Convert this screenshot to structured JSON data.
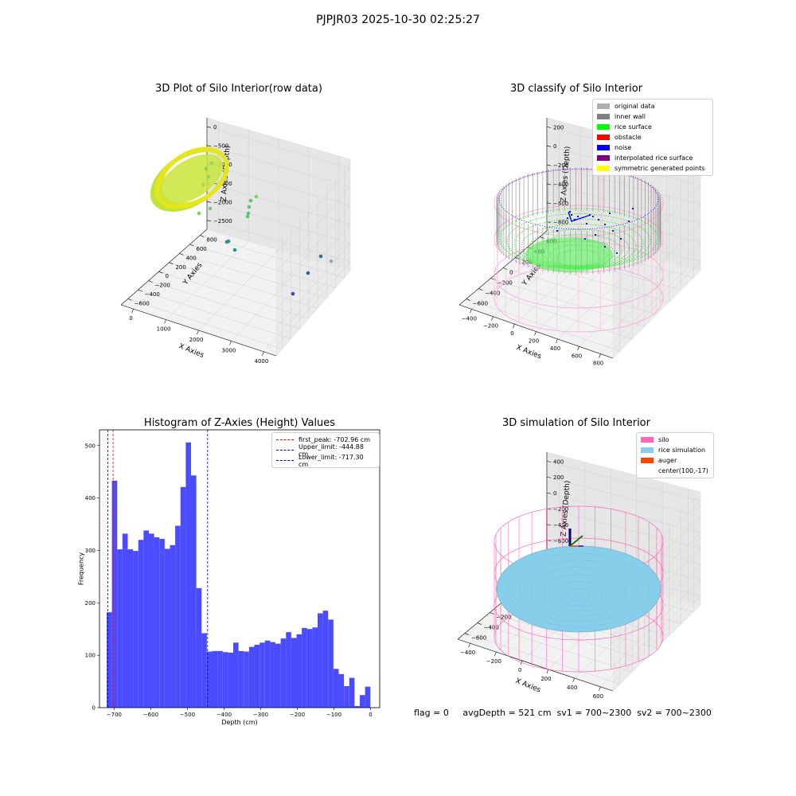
{
  "suptitle": "PJPJR03 2025-10-30 02:25:27",
  "status": "flag = 0     avgDepth = 521 cm  sv1 = 700~2300  sv2 = 700~2300",
  "panels": {
    "raw": {
      "title": "3D Plot of Silo Interior(row data)",
      "xlabel": "X Axies",
      "ylabel": "Y Axies",
      "zlabel": "Z Axies (Depth)",
      "xticks": [
        "0",
        "1000",
        "2000",
        "3000",
        "4000"
      ],
      "yticks": [
        "800",
        "600",
        "400",
        "200",
        "0",
        "−200",
        "−400",
        "−600"
      ],
      "zticks": [
        "0",
        "−500",
        "−1000",
        "−1500",
        "−2000",
        "−2500"
      ]
    },
    "classify": {
      "title": "3D classify of Silo Interior",
      "xlabel": "X Axies",
      "ylabel": "Y Axies",
      "zlabel": "Z Axies (Depth)",
      "xticks": [
        "−400",
        "−200",
        "0",
        "200",
        "400",
        "600",
        "800"
      ],
      "yticks": [
        "600",
        "400",
        "200",
        "0",
        "−200",
        "−400",
        "−600"
      ],
      "zticks": [
        "200",
        "0",
        "−200",
        "−400",
        "−600",
        "−800"
      ],
      "legend": [
        {
          "label": "original data",
          "color": "#b0b0b0"
        },
        {
          "label": "inner wall",
          "color": "#808080"
        },
        {
          "label": "rice surface",
          "color": "#00ff00"
        },
        {
          "label": "obstacle",
          "color": "#ff0000"
        },
        {
          "label": "noise",
          "color": "#0000ff"
        },
        {
          "label": "interpolated rice surface",
          "color": "#800080"
        },
        {
          "label": "symmetric generated points",
          "color": "#ffff00"
        }
      ]
    },
    "simulation": {
      "title": "3D simulation of Silo Interior",
      "xlabel": "X Axies",
      "ylabel": "Y Axies",
      "zlabel": "Z Axies (Depth)",
      "xticks": [
        "−400",
        "−200",
        "0",
        "200",
        "400",
        "600"
      ],
      "yticks": [
        "600",
        "400",
        "200",
        "0",
        "−200",
        "−400",
        "−600"
      ],
      "zticks": [
        "400",
        "200",
        "0",
        "−200",
        "−400",
        "−600",
        "−800"
      ],
      "legend": [
        {
          "label": "silo",
          "color": "#ff69b4"
        },
        {
          "label": "rice simulation",
          "color": "#87ceeb"
        },
        {
          "label": "auger",
          "color": "#ff4500"
        },
        {
          "label": "center(100,-17)",
          "color": "none"
        }
      ]
    }
  },
  "chart_data": [
    {
      "type": "bar",
      "title": "Histogram of Z-Axies (Height) Values",
      "xlabel": "Depth (cm)",
      "ylabel": "Frequency",
      "xlim": [
        -740,
        25
      ],
      "ylim": [
        0,
        530
      ],
      "xticks": [
        -700,
        -600,
        -500,
        -400,
        -300,
        -200,
        -100,
        0
      ],
      "xtick_labels": [
        "−700",
        "−600",
        "−500",
        "−400",
        "−300",
        "−200",
        "−100",
        "0"
      ],
      "yticks": [
        0,
        100,
        200,
        300,
        400,
        500
      ],
      "bar_color": "#4c4cff",
      "bin_start": -720.5,
      "bin_width": 14.4,
      "values": [
        182,
        433,
        302,
        332,
        302,
        299,
        320,
        338,
        332,
        325,
        322,
        303,
        310,
        347,
        421,
        506,
        443,
        228,
        142,
        107,
        108,
        108,
        106,
        105,
        124,
        108,
        107,
        116,
        120,
        124,
        128,
        125,
        122,
        132,
        144,
        133,
        140,
        152,
        150,
        153,
        180,
        185,
        168,
        74,
        64,
        41,
        57,
        3,
        24,
        40
      ],
      "reference_lines": [
        {
          "label": "first_peak: -702.96 cm",
          "x": -702.96,
          "color": "#ff0000"
        },
        {
          "label": "Upper_limit: -444.88 cm",
          "x": -444.88,
          "color": "#0000aa"
        },
        {
          "label": "Lower_limit: -717.30 cm",
          "x": -717.3,
          "color": "#0000aa"
        }
      ],
      "legend_position": "upper right"
    }
  ]
}
